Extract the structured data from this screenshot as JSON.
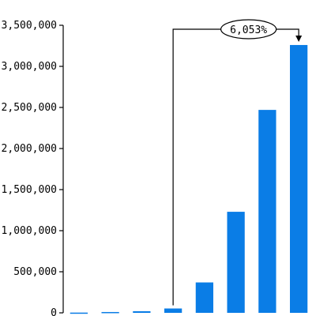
{
  "chart_data": {
    "type": "bar",
    "title": "",
    "xlabel": "",
    "ylabel": "",
    "ylim": [
      0,
      3500000
    ],
    "grid": false,
    "y_ticks": [
      "3,500,000",
      "3,000,000",
      "2,500,000",
      "2,000,000",
      "1,500,000",
      "1,000,000",
      "500,000",
      "0"
    ],
    "y_tick_values": [
      3500000,
      3000000,
      2500000,
      2000000,
      1500000,
      1000000,
      500000,
      0
    ],
    "values": [
      3000,
      10000,
      20000,
      53000,
      370000,
      1230000,
      2470000,
      3260000
    ],
    "bar_color": "#0a7de6",
    "annotation": {
      "label": "6,053%",
      "from_bar_index": 3,
      "to_bar_index": 7
    }
  }
}
